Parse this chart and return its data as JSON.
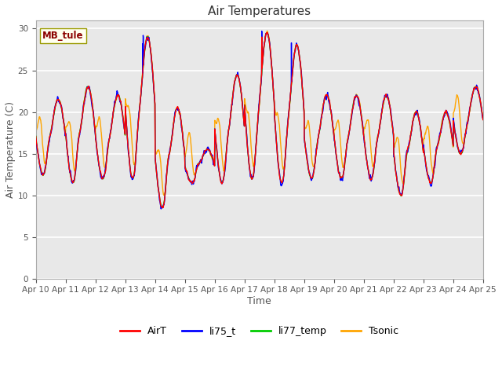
{
  "title": "Air Temperatures",
  "xlabel": "Time",
  "ylabel": "Air Temperature (C)",
  "ylim": [
    0,
    31
  ],
  "yticks": [
    0,
    5,
    10,
    15,
    20,
    25,
    30
  ],
  "site_label": "MB_tule",
  "site_label_color": "#8B0000",
  "site_label_bg": "#FFFFF0",
  "legend_labels": [
    "AirT",
    "li75_t",
    "li77_temp",
    "Tsonic"
  ],
  "line_colors": [
    "#FF0000",
    "#0000FF",
    "#00CC00",
    "#FFA500"
  ],
  "xtick_labels": [
    "Apr 10",
    "Apr 11",
    "Apr 12",
    "Apr 13",
    "Apr 14",
    "Apr 15",
    "Apr 16",
    "Apr 17",
    "Apr 18",
    "Apr 19",
    "Apr 20",
    "Apr 21",
    "Apr 22",
    "Apr 23",
    "Apr 24",
    "Apr 25"
  ],
  "n_days": 15,
  "points_per_day": 144,
  "background_color": "#E8E8E8",
  "grid_color": "#FFFFFF",
  "line_width": 1.0,
  "daily_peaks": [
    21.5,
    23.0,
    22.0,
    29.0,
    20.5,
    15.5,
    24.5,
    29.5,
    28.0,
    22.0,
    22.0,
    22.0,
    20.0,
    20.0,
    23.0
  ],
  "daily_mins": [
    12.5,
    11.5,
    12.0,
    12.0,
    8.5,
    11.5,
    11.5,
    12.0,
    11.5,
    12.0,
    12.0,
    12.0,
    10.0,
    11.5,
    15.0
  ],
  "daily_sec_peaks": [
    16.5,
    18.0,
    16.0,
    18.0,
    16.0,
    15.0,
    17.0,
    16.5,
    17.0,
    16.0,
    16.0,
    17.0,
    16.5,
    16.5,
    17.0
  ],
  "tsonic_morning_bumps": [
    14.5,
    15.0,
    15.0,
    15.5,
    13.5,
    14.0,
    15.0,
    13.5,
    14.5,
    14.0,
    14.5,
    15.0,
    14.5,
    14.5,
    15.5
  ]
}
